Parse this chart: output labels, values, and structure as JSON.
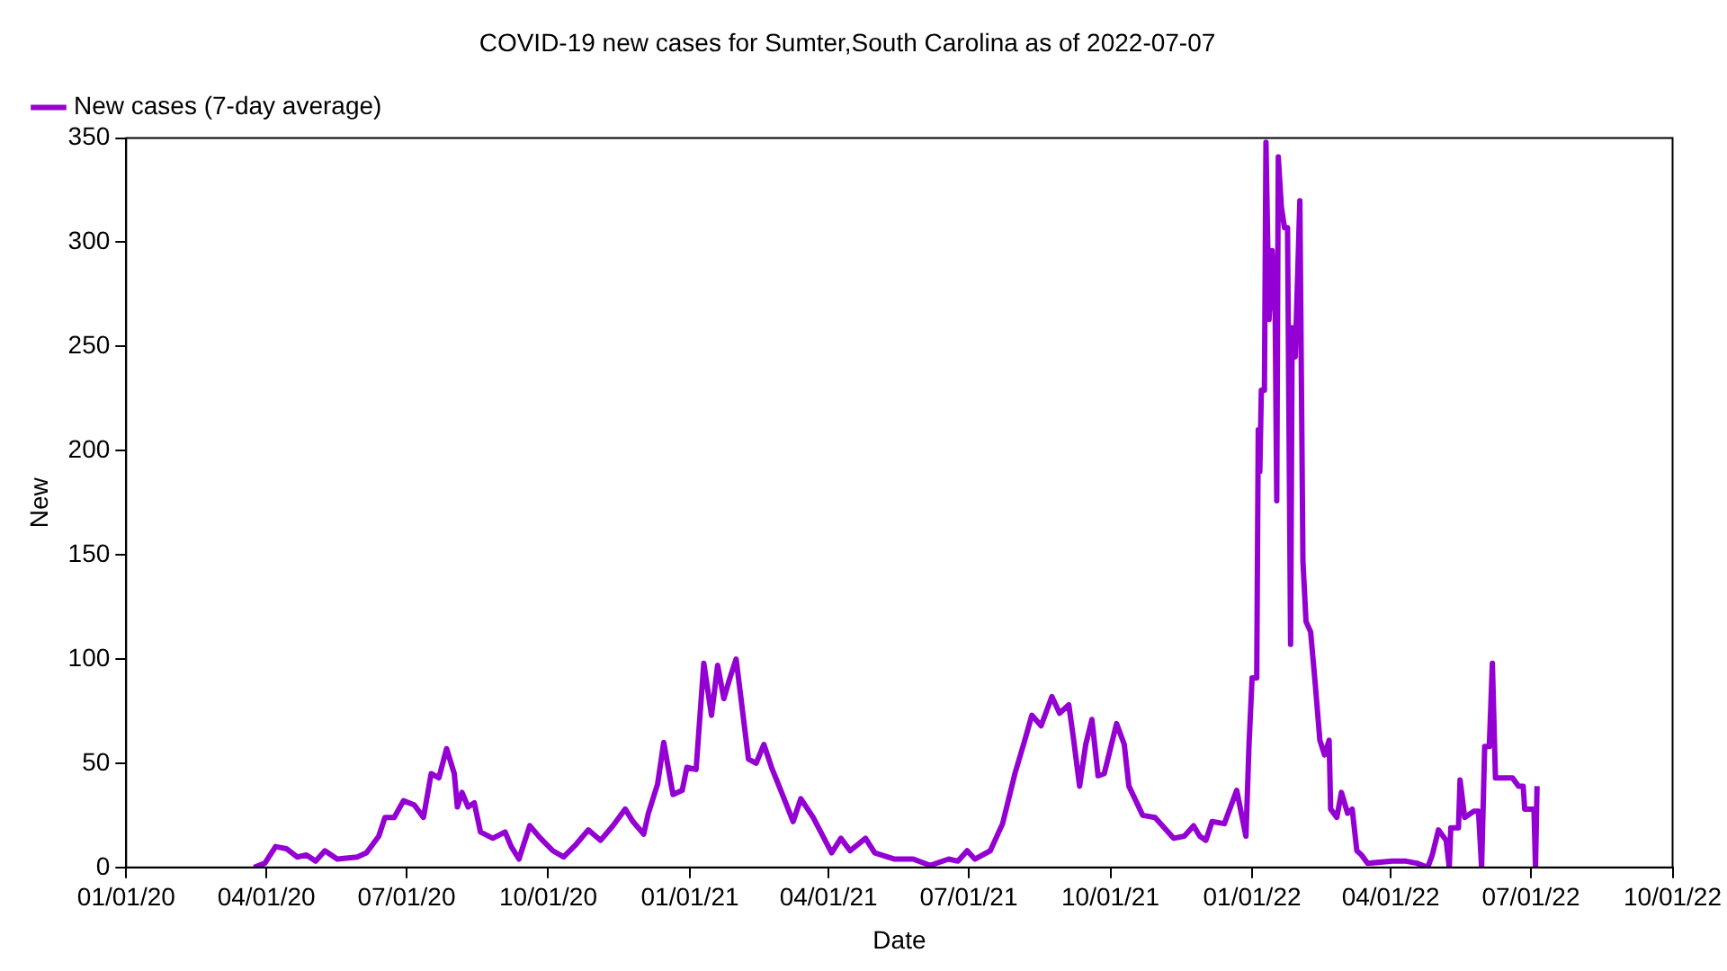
{
  "chart_data": {
    "type": "line",
    "title": "COVID-19 new cases for Sumter,South Carolina as of 2022-07-07",
    "xlabel": "Date",
    "ylabel": "New",
    "xlim": [
      "2020-01-01",
      "2022-10-01"
    ],
    "xticks": [
      {
        "value": "2020-01-01",
        "label": "01/01/20"
      },
      {
        "value": "2020-04-01",
        "label": "04/01/20"
      },
      {
        "value": "2020-07-01",
        "label": "07/01/20"
      },
      {
        "value": "2020-10-01",
        "label": "10/01/20"
      },
      {
        "value": "2021-01-01",
        "label": "01/01/21"
      },
      {
        "value": "2021-04-01",
        "label": "04/01/21"
      },
      {
        "value": "2021-07-01",
        "label": "07/01/21"
      },
      {
        "value": "2021-10-01",
        "label": "10/01/21"
      },
      {
        "value": "2022-01-01",
        "label": "01/01/22"
      },
      {
        "value": "2022-04-01",
        "label": "04/01/22"
      },
      {
        "value": "2022-07-01",
        "label": "07/01/22"
      },
      {
        "value": "2022-10-01",
        "label": "10/01/22"
      }
    ],
    "ylim": [
      0,
      350
    ],
    "yticks": [
      0,
      50,
      100,
      150,
      200,
      250,
      300,
      350
    ],
    "grid": false,
    "legend": "top left",
    "marker": "none",
    "line_style": "solid",
    "series": [
      {
        "name": "New cases (7-day average)",
        "color": "#9400d3",
        "x": [
          "2020-03-24",
          "2020-03-31",
          "2020-04-07",
          "2020-04-14",
          "2020-04-21",
          "2020-04-27",
          "2020-05-03",
          "2020-05-09",
          "2020-05-17",
          "2020-05-30",
          "2020-06-05",
          "2020-06-13",
          "2020-06-17",
          "2020-06-23",
          "2020-06-29",
          "2020-07-06",
          "2020-07-12",
          "2020-07-17",
          "2020-07-22",
          "2020-07-27",
          "2020-08-01",
          "2020-08-03",
          "2020-08-06",
          "2020-08-10",
          "2020-08-14",
          "2020-08-18",
          "2020-08-26",
          "2020-09-03",
          "2020-09-07",
          "2020-09-12",
          "2020-09-19",
          "2020-09-26",
          "2020-10-04",
          "2020-10-11",
          "2020-10-19",
          "2020-10-27",
          "2020-11-04",
          "2020-11-12",
          "2020-11-20",
          "2020-11-25",
          "2020-12-02",
          "2020-12-05",
          "2020-12-11",
          "2020-12-15",
          "2020-12-21",
          "2020-12-27",
          "2020-12-30",
          "2021-01-05",
          "2021-01-10",
          "2021-01-15",
          "2021-01-19",
          "2021-01-23",
          "2021-01-27",
          "2021-01-31",
          "2021-02-04",
          "2021-02-08",
          "2021-02-13",
          "2021-02-18",
          "2021-02-23",
          "2021-03-01",
          "2021-03-09",
          "2021-03-14",
          "2021-03-22",
          "2021-04-03",
          "2021-04-09",
          "2021-04-15",
          "2021-04-25",
          "2021-05-01",
          "2021-05-14",
          "2021-05-26",
          "2021-06-06",
          "2021-06-18",
          "2021-06-24",
          "2021-06-30",
          "2021-07-05",
          "2021-07-15",
          "2021-07-23",
          "2021-07-31",
          "2021-08-06",
          "2021-08-11",
          "2021-08-17",
          "2021-08-24",
          "2021-08-29",
          "2021-09-04",
          "2021-09-07",
          "2021-09-11",
          "2021-09-15",
          "2021-09-19",
          "2021-09-23",
          "2021-09-27",
          "2021-10-05",
          "2021-10-10",
          "2021-10-13",
          "2021-10-22",
          "2021-10-30",
          "2021-11-11",
          "2021-11-18",
          "2021-11-24",
          "2021-11-28",
          "2021-12-02",
          "2021-12-06",
          "2021-12-14",
          "2021-12-22",
          "2021-12-28",
          "2021-12-30",
          "2022-01-01",
          "2022-01-04",
          "2022-01-05",
          "2022-01-06",
          "2022-01-07",
          "2022-01-09",
          "2022-01-10",
          "2022-01-12",
          "2022-01-14",
          "2022-01-16",
          "2022-01-17",
          "2022-01-18",
          "2022-01-20",
          "2022-01-22",
          "2022-01-24",
          "2022-01-26",
          "2022-01-27",
          "2022-01-29",
          "2022-02-01",
          "2022-02-03",
          "2022-02-05",
          "2022-02-08",
          "2022-02-11",
          "2022-02-14",
          "2022-02-17",
          "2022-02-20",
          "2022-02-21",
          "2022-02-25",
          "2022-02-28",
          "2022-03-04",
          "2022-03-07",
          "2022-03-10",
          "2022-03-13",
          "2022-03-17",
          "2022-04-02",
          "2022-04-11",
          "2022-04-18",
          "2022-04-25",
          "2022-04-28",
          "2022-05-02",
          "2022-05-07",
          "2022-05-09",
          "2022-05-10",
          "2022-05-15",
          "2022-05-16",
          "2022-05-19",
          "2022-05-25",
          "2022-05-28",
          "2022-05-30",
          "2022-06-01",
          "2022-06-04",
          "2022-06-06",
          "2022-06-08",
          "2022-06-19",
          "2022-06-23",
          "2022-06-26",
          "2022-06-27",
          "2022-07-03",
          "2022-07-04",
          "2022-07-05"
        ],
        "values": [
          0,
          2,
          10,
          9,
          5,
          6,
          3,
          8,
          4,
          5,
          7,
          15,
          24,
          24,
          32,
          30,
          24,
          45,
          43,
          57,
          45,
          29,
          36,
          29,
          31,
          17,
          14,
          17,
          10,
          4,
          20,
          14,
          8,
          5,
          11,
          18,
          13,
          20,
          28,
          22,
          16,
          26,
          40,
          60,
          35,
          37,
          48,
          47,
          98,
          73,
          97,
          81,
          91,
          100,
          76,
          52,
          50,
          59,
          48,
          37,
          22,
          33,
          24,
          7,
          14,
          8,
          14,
          7,
          4,
          4,
          1,
          4,
          3,
          8,
          4,
          8,
          21,
          45,
          60,
          73,
          68,
          82,
          74,
          78,
          62,
          39,
          59,
          71,
          44,
          45,
          69,
          59,
          39,
          25,
          24,
          14,
          15,
          20,
          15,
          13,
          22,
          21,
          37,
          15,
          59,
          91,
          91,
          210,
          190,
          229,
          229,
          348,
          263,
          296,
          265,
          176,
          341,
          317,
          307,
          307,
          107,
          259,
          245,
          320,
          147,
          118,
          113,
          88,
          61,
          54,
          61,
          28,
          24,
          36,
          26,
          28,
          8,
          6,
          2,
          3,
          3,
          2,
          0,
          6,
          18,
          13,
          0,
          19,
          19,
          42,
          24,
          27,
          27,
          0,
          58,
          58,
          98,
          43,
          43,
          39,
          39,
          28,
          28,
          0,
          39
        ]
      }
    ]
  }
}
